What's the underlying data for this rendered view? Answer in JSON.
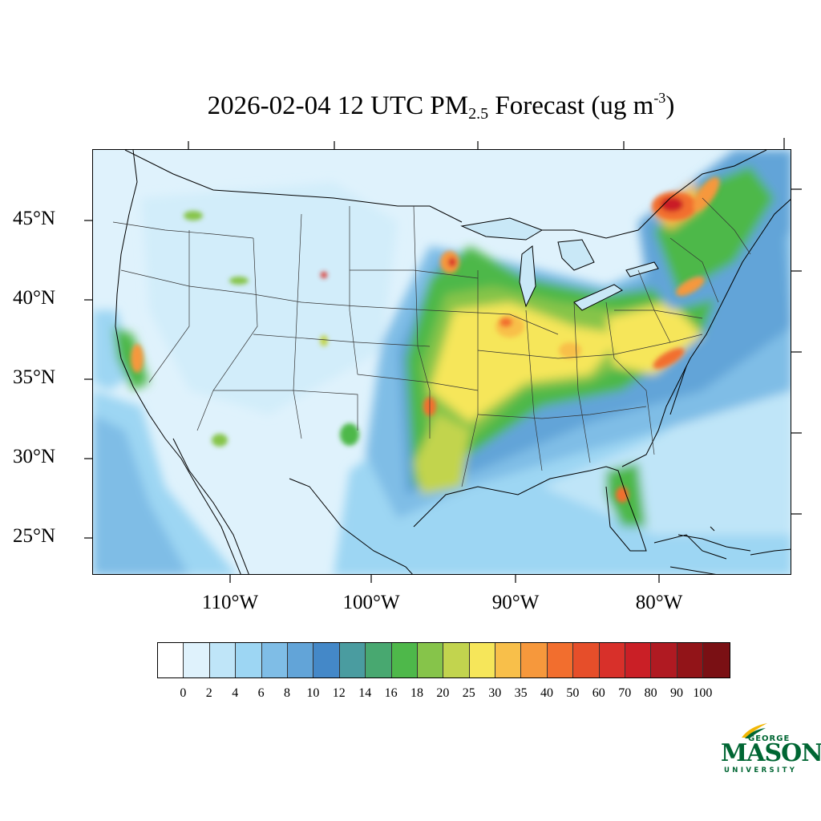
{
  "title": {
    "prefix": "2026-02-04 12 UTC PM",
    "subscript": "2.5",
    "middle": " Forecast (ug m",
    "superscript": "-3",
    "suffix": ")"
  },
  "lat_labels": [
    "45°N",
    "40°N",
    "35°N",
    "30°N",
    "25°N"
  ],
  "lon_labels": [
    "110°W",
    "100°W",
    "90°W",
    "80°W"
  ],
  "colorbar": {
    "levels": [
      "0",
      "2",
      "4",
      "6",
      "8",
      "10",
      "12",
      "14",
      "16",
      "18",
      "20",
      "25",
      "30",
      "35",
      "40",
      "50",
      "60",
      "70",
      "80",
      "90",
      "100"
    ],
    "colors": [
      "#ffffff",
      "#dff2fc",
      "#bfe5f8",
      "#9dd6f3",
      "#7fbde6",
      "#62a4d8",
      "#4488c8",
      "#4a9ca0",
      "#48a870",
      "#4eb84a",
      "#86c44a",
      "#c2d44e",
      "#f6e65a",
      "#f8bf4a",
      "#f6983c",
      "#f26e2e",
      "#e64e2a",
      "#d8302a",
      "#ca1f26",
      "#b01a22",
      "#921418",
      "#7a1014"
    ]
  },
  "logo": {
    "top": "GEORGE",
    "main": "MASON",
    "bottom": "UNIVERSITY"
  },
  "colors": {
    "ocean": "#dff2fc",
    "low": "#bfe5f8",
    "moderate": "#7fbde6",
    "elevated": "#4eb84a",
    "high": "#f6e65a",
    "very_high": "#f26e2e",
    "extreme": "#ca1f26",
    "logo_green": "#006633"
  }
}
